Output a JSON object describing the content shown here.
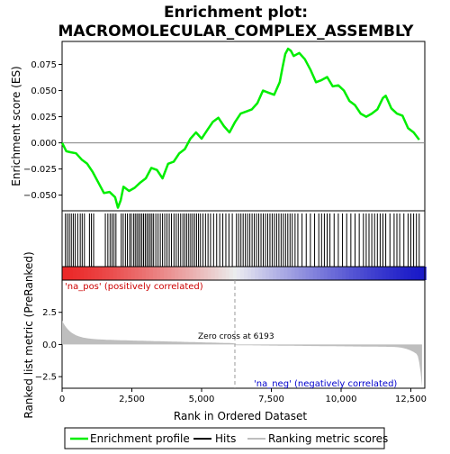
{
  "chart_data": {
    "type": "line",
    "title_line1": "Enrichment plot:",
    "title_line2": "MACROMOLECULAR_COMPLEX_ASSEMBLY",
    "xlabel": "Rank in Ordered Dataset",
    "ylabel_top": "Enrichment score (ES)",
    "ylabel_bottom": "Ranked list metric (PreRanked)",
    "xlim": [
      0,
      13000
    ],
    "x_ticks": [
      0,
      2500,
      5000,
      7500,
      10000,
      12500
    ],
    "x_tick_labels": [
      "0",
      "2,500",
      "5,000",
      "7,500",
      "10,000",
      "12,500"
    ],
    "es_ylim": [
      -0.065,
      0.097
    ],
    "es_ticks": [
      -0.05,
      -0.025,
      0.0,
      0.025,
      0.05,
      0.075
    ],
    "es_tick_labels": [
      "−0.050",
      "−0.025",
      "0.000",
      "0.025",
      "0.050",
      "0.075"
    ],
    "metric_ylim": [
      -3.4,
      5.0
    ],
    "metric_ticks": [
      -2.5,
      0.0,
      2.5
    ],
    "metric_tick_labels": [
      "−2.5",
      "0.0",
      "2.5"
    ],
    "zero_cross": 6193,
    "zero_cross_label": "Zero cross at 6193",
    "pos_label": "'na_pos' (positively correlated)",
    "neg_label": "'na_neg' (negatively correlated)",
    "n_genes": 12900,
    "enrichment_profile": {
      "x": [
        0,
        150,
        300,
        500,
        700,
        900,
        1100,
        1300,
        1500,
        1700,
        1900,
        2000,
        2100,
        2200,
        2400,
        2600,
        2800,
        3000,
        3200,
        3400,
        3600,
        3800,
        4000,
        4200,
        4400,
        4600,
        4800,
        5000,
        5200,
        5400,
        5600,
        5800,
        6000,
        6200,
        6400,
        6600,
        6800,
        7000,
        7200,
        7400,
        7600,
        7800,
        7900,
        8000,
        8100,
        8200,
        8300,
        8500,
        8700,
        8900,
        9100,
        9300,
        9500,
        9700,
        9900,
        10100,
        10300,
        10500,
        10700,
        10900,
        11100,
        11300,
        11500,
        11600,
        11800,
        12000,
        12200,
        12400,
        12600,
        12800
      ],
      "y": [
        0.0,
        -0.008,
        -0.009,
        -0.01,
        -0.016,
        -0.02,
        -0.028,
        -0.038,
        -0.048,
        -0.047,
        -0.052,
        -0.062,
        -0.055,
        -0.042,
        -0.046,
        -0.043,
        -0.038,
        -0.034,
        -0.024,
        -0.026,
        -0.034,
        -0.02,
        -0.018,
        -0.01,
        -0.006,
        0.004,
        0.01,
        0.004,
        0.012,
        0.02,
        0.024,
        0.016,
        0.01,
        0.02,
        0.028,
        0.03,
        0.032,
        0.038,
        0.05,
        0.048,
        0.046,
        0.058,
        0.072,
        0.085,
        0.09,
        0.088,
        0.083,
        0.086,
        0.08,
        0.07,
        0.058,
        0.06,
        0.063,
        0.054,
        0.055,
        0.05,
        0.04,
        0.036,
        0.028,
        0.025,
        0.028,
        0.032,
        0.043,
        0.045,
        0.033,
        0.028,
        0.026,
        0.014,
        0.01,
        0.003
      ]
    },
    "hit_ranks": [
      120,
      190,
      260,
      330,
      400,
      470,
      560,
      650,
      720,
      800,
      980,
      1050,
      1130,
      1550,
      1640,
      1720,
      1790,
      1860,
      1930,
      2120,
      2190,
      2270,
      2340,
      2420,
      2480,
      2560,
      2620,
      2680,
      2740,
      2800,
      2860,
      2920,
      2980,
      3040,
      3100,
      3160,
      3220,
      3280,
      3360,
      3440,
      3520,
      3600,
      3680,
      3760,
      3840,
      3920,
      4010,
      4090,
      4170,
      4250,
      4330,
      4400,
      4470,
      4540,
      4610,
      4680,
      4750,
      4820,
      4890,
      4960,
      5050,
      5140,
      5230,
      5320,
      5430,
      5540,
      5650,
      5760,
      5870,
      5980,
      6100,
      6250,
      6330,
      6410,
      6490,
      6570,
      6650,
      6730,
      6810,
      6890,
      6970,
      7050,
      7130,
      7210,
      7290,
      7370,
      7450,
      7530,
      7610,
      7690,
      7770,
      7850,
      7930,
      8010,
      8090,
      8170,
      8250,
      8350,
      8450,
      8600,
      8750,
      8900,
      9050,
      9200,
      9300,
      9400,
      9500,
      9600,
      9750,
      9900,
      10050,
      10200,
      10350,
      10500,
      10650,
      10800,
      10900,
      11000,
      11100,
      11200,
      11300,
      11400,
      11500,
      11600,
      11750,
      11900,
      12000,
      12100,
      12250,
      12400,
      12500,
      12600,
      12700,
      12800
    ]
  },
  "legend": {
    "profile_label": "Enrichment profile",
    "hits_label": "Hits",
    "metric_label": "Ranking metric scores",
    "profile_color": "#00ee00",
    "hits_color": "#000000",
    "metric_color": "#bebebe"
  }
}
